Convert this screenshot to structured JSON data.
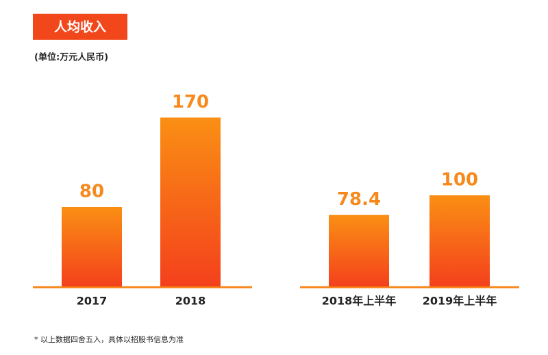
{
  "title": "人均收入",
  "subtitle": "(单位:万元人民币)",
  "note": "* 以上数据四舍五入，具体以招股书信息为准",
  "chart_data": [
    {
      "type": "bar",
      "categories": [
        "2017",
        "2018"
      ],
      "values": [
        80,
        170
      ],
      "color": "#f7891c"
    },
    {
      "type": "bar",
      "categories": [
        "2018年上半年",
        "2019年上半年"
      ],
      "values": [
        78.4,
        100
      ],
      "color": "#f7891c"
    }
  ]
}
